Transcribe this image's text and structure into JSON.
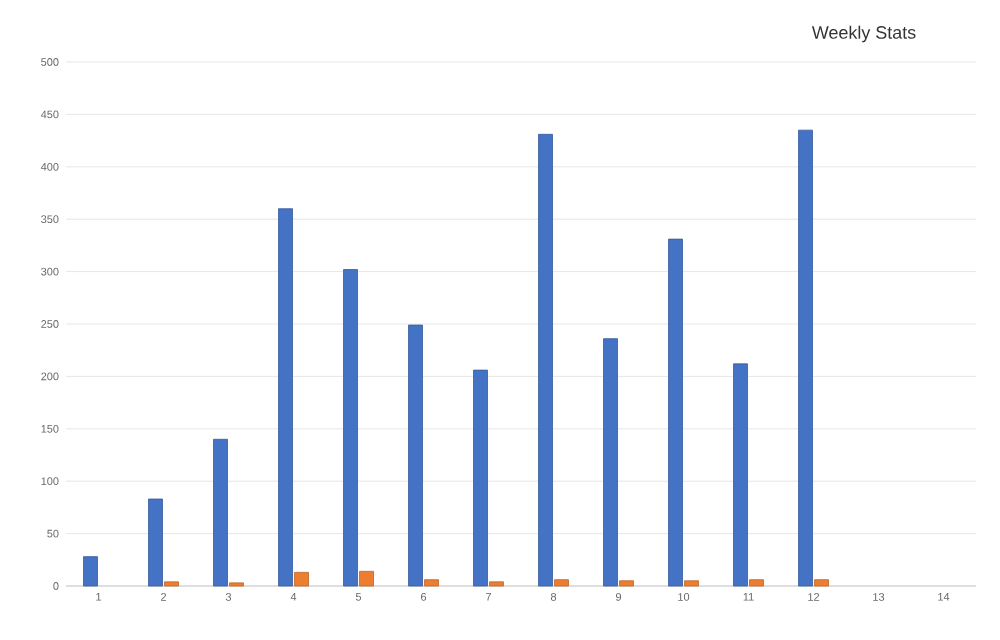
{
  "chart_data": {
    "type": "bar",
    "title": "Weekly Stats",
    "categories": [
      "1",
      "2",
      "3",
      "4",
      "5",
      "6",
      "7",
      "8",
      "9",
      "10",
      "11",
      "12",
      "13",
      "14"
    ],
    "series": [
      {
        "color": "#4472c4",
        "values": [
          28,
          83,
          140,
          360,
          302,
          249,
          206,
          431,
          236,
          331,
          212,
          435,
          null,
          null
        ]
      },
      {
        "color": "#ed7d31",
        "values": [
          null,
          4,
          3,
          13,
          14,
          6,
          4,
          6,
          5,
          5,
          6,
          6,
          null,
          null
        ]
      }
    ],
    "ylim": [
      0,
      500
    ],
    "yticks": [
      0,
      50,
      100,
      150,
      200,
      250,
      300,
      350,
      400,
      450,
      500
    ],
    "grid": "y"
  }
}
